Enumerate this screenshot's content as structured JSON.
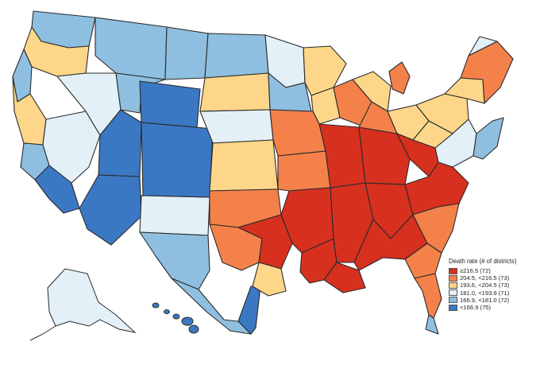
{
  "legend": {
    "title": "Death rate (# of districts)",
    "items": [
      {
        "label": "≥216.5 (72)",
        "color": "#d7301f"
      },
      {
        "label": "204.5, <216.5 (73)",
        "color": "#f4814a"
      },
      {
        "label": "193.6, <204.5 (73)",
        "color": "#fdd68a"
      },
      {
        "label": "181.0, <193.6 (71)",
        "color": "#e3f0f8"
      },
      {
        "label": "166.9, <181.0 (72)",
        "color": "#8fbfe0"
      },
      {
        "label": "<166.9 (75)",
        "color": "#3b78c4"
      }
    ]
  },
  "map": {
    "palette": {
      "c1": "#d7301f",
      "c2": "#f4814a",
      "c3": "#fdd68a",
      "c4": "#e3f0f8",
      "c5": "#8fbfe0",
      "c6": "#3b78c4"
    }
  }
}
